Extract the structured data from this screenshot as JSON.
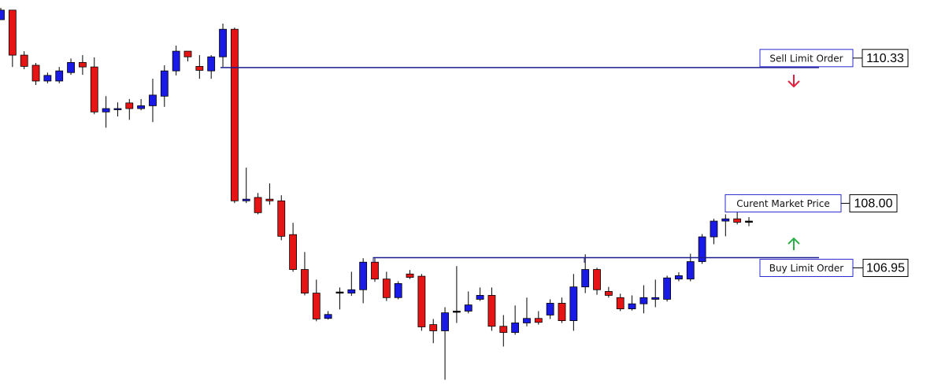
{
  "chart_data": {
    "type": "candlestick",
    "ylim": [
      104.58,
      111.53
    ],
    "up_color": "#1a1ae6",
    "down_color": "#e61515",
    "flat_color": "#000000",
    "series": [
      {
        "open": [
          111.18,
          111.35,
          110.55,
          110.37,
          110.09,
          110.09,
          110.24,
          110.42,
          110.34,
          109.54,
          109.58,
          109.7,
          109.6,
          109.65,
          109.82,
          110.27,
          110.62,
          110.35,
          110.27,
          110.52,
          111.01,
          107.96,
          108.02,
          107.99,
          107.96,
          107.36,
          106.74,
          106.32,
          105.87,
          106.34,
          106.32,
          106.38,
          106.87,
          106.57,
          106.24,
          106.66,
          106.62,
          105.76,
          105.65,
          106.0,
          106.0,
          106.21,
          106.28,
          105.73,
          105.62,
          105.79,
          105.87,
          105.93,
          106.14,
          105.83,
          106.43,
          106.74,
          106.35,
          106.24,
          106.04,
          106.13,
          106.21,
          106.21,
          106.57,
          106.57,
          106.88,
          107.32,
          107.6,
          107.64,
          107.6
        ],
        "high": [
          111.39,
          111.35,
          110.62,
          110.41,
          110.24,
          110.34,
          110.49,
          110.55,
          110.51,
          109.82,
          109.71,
          109.77,
          109.77,
          110.13,
          110.37,
          110.72,
          110.62,
          110.55,
          110.55,
          111.11,
          111.04,
          108.55,
          108.1,
          108.27,
          108.06,
          107.57,
          107.05,
          106.56,
          106.0,
          106.42,
          106.7,
          106.94,
          106.94,
          106.7,
          106.53,
          106.73,
          106.66,
          105.86,
          106.07,
          106.8,
          106.35,
          106.42,
          106.42,
          105.93,
          106.1,
          106.24,
          106.0,
          106.21,
          106.24,
          106.66,
          107.01,
          106.77,
          106.43,
          106.31,
          106.28,
          106.46,
          106.56,
          106.63,
          106.69,
          107.02,
          107.37,
          107.64,
          107.72,
          107.78,
          107.67
        ],
        "low": [
          111.18,
          110.34,
          110.3,
          110.02,
          110.05,
          110.05,
          110.2,
          110.2,
          109.5,
          109.26,
          109.46,
          109.4,
          109.57,
          109.36,
          109.63,
          110.19,
          110.44,
          110.13,
          110.13,
          110.34,
          107.92,
          107.92,
          107.72,
          107.89,
          107.26,
          106.7,
          106.28,
          105.82,
          105.85,
          106.03,
          106.27,
          106.14,
          106.52,
          106.18,
          106.21,
          106.57,
          105.65,
          105.43,
          104.78,
          105.79,
          105.96,
          106.18,
          105.65,
          105.37,
          105.58,
          105.73,
          105.76,
          105.86,
          105.79,
          105.65,
          106.32,
          106.29,
          106.24,
          106.0,
          106.01,
          105.96,
          106.07,
          106.17,
          106.53,
          106.53,
          106.84,
          107.19,
          107.33,
          107.54,
          107.51
        ],
        "close": [
          111.35,
          110.55,
          110.35,
          110.09,
          110.19,
          110.27,
          110.42,
          110.34,
          109.54,
          109.6,
          109.6,
          109.6,
          109.65,
          109.84,
          110.27,
          110.62,
          110.52,
          110.28,
          110.52,
          111.01,
          107.96,
          107.99,
          107.75,
          107.96,
          107.33,
          106.74,
          106.32,
          105.86,
          105.94,
          106.34,
          106.38,
          106.87,
          106.57,
          106.24,
          106.49,
          106.6,
          105.72,
          105.65,
          105.97,
          106.0,
          106.11,
          106.28,
          105.73,
          105.62,
          105.79,
          105.87,
          105.8,
          106.14,
          105.83,
          106.43,
          106.74,
          106.38,
          106.28,
          106.04,
          106.13,
          106.24,
          106.24,
          106.59,
          106.63,
          106.88,
          107.32,
          107.6,
          107.64,
          107.58,
          107.6
        ]
      }
    ],
    "annotations": [
      {
        "text": "Sell Limit Order",
        "price": 110.33
      },
      {
        "text": "Curent Market Price",
        "price": {
          "value": 108,
          "label": "108.00"
        }
      },
      {
        "text": "Buy Limit Order",
        "price": 106.95
      }
    ]
  }
}
